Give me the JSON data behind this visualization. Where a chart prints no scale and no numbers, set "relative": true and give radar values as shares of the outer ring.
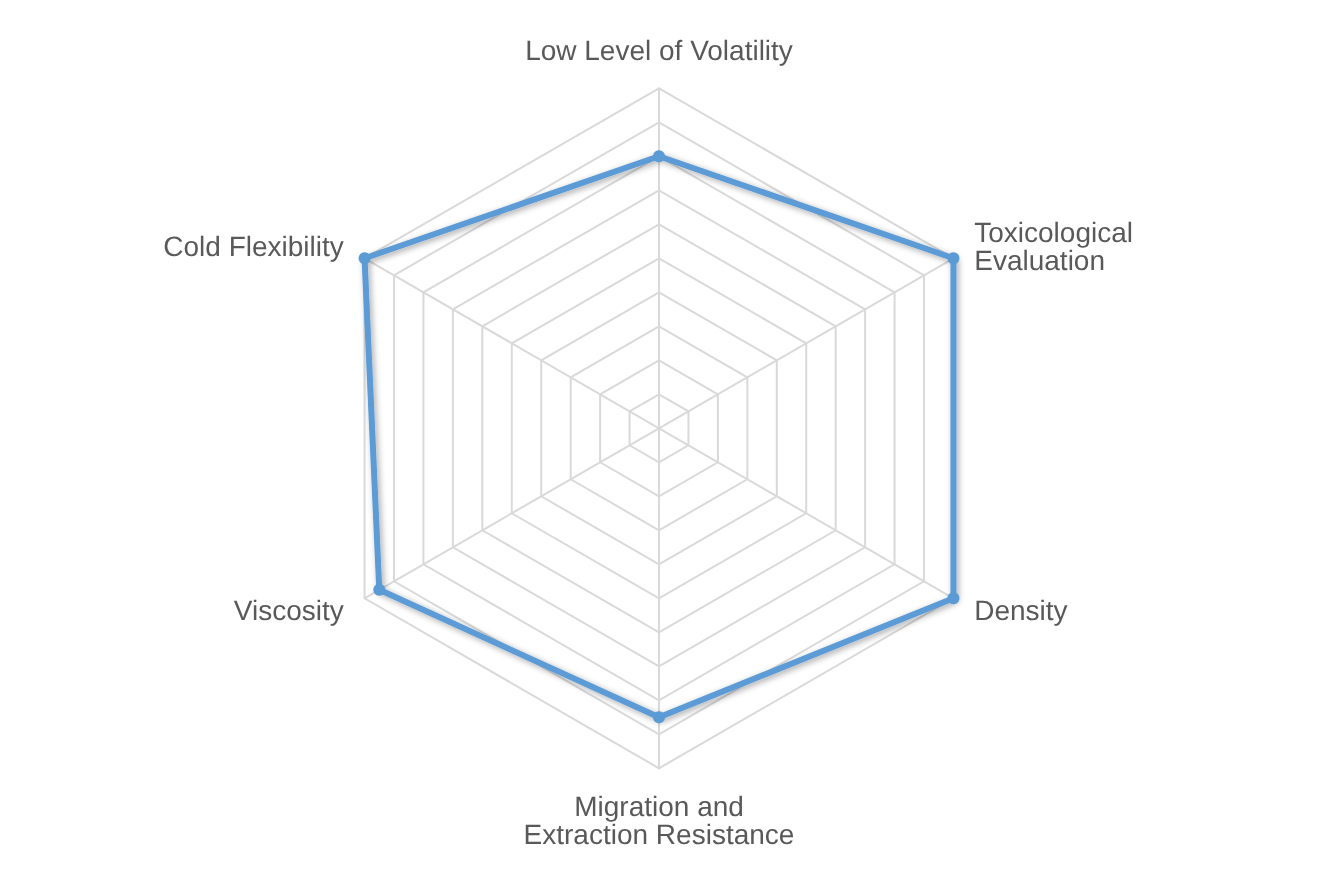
{
  "chart_data": {
    "type": "radar",
    "relative": true,
    "categories": [
      "Low Level of Volatility",
      "Toxicological\nEvaluation",
      "Density",
      "Migration and\nExtraction Resistance",
      "Viscosity",
      "Cold Flexibility"
    ],
    "series": [
      {
        "color": "#5b9bd5",
        "values": [
          0.8,
          1.0,
          1.0,
          0.85,
          0.95,
          1.0
        ]
      }
    ],
    "grid": true,
    "marker": "circle"
  }
}
